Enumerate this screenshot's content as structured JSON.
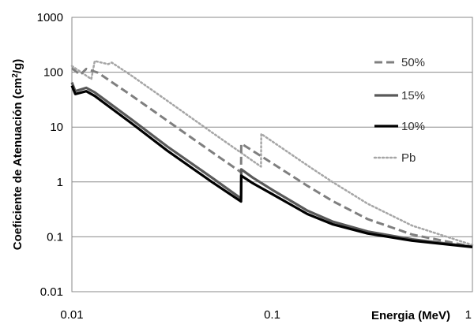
{
  "chart_data": {
    "type": "line",
    "xlabel": "Energia (MeV)",
    "ylabel_main": "Coeficiente de Atenuación (cm",
    "ylabel_sup": "2",
    "ylabel_tail": "/g)",
    "x_scale": "log",
    "y_scale": "log",
    "xlim": [
      0.01,
      1
    ],
    "ylim": [
      0.01,
      1000
    ],
    "x_ticks": [
      0.01,
      0.1,
      1
    ],
    "x_tick_labels": [
      "0.01",
      "0.1",
      "1"
    ],
    "y_ticks": [
      0.01,
      0.1,
      1,
      10,
      100,
      1000
    ],
    "y_tick_labels": [
      "0.01",
      "0.1",
      "1",
      "10",
      "100",
      "1000"
    ],
    "grid": "horizontal",
    "legend_position": "right",
    "series": [
      {
        "name": "50%",
        "color": "#7f7f7f",
        "style": "dashed",
        "points": [
          [
            0.01,
            118
          ],
          [
            0.011,
            90
          ],
          [
            0.0118,
            115
          ],
          [
            0.0135,
            98
          ],
          [
            0.02,
            37
          ],
          [
            0.03,
            13
          ],
          [
            0.05,
            3.5
          ],
          [
            0.0699,
            1.5
          ],
          [
            0.0701,
            5.0
          ],
          [
            0.08,
            3.7
          ],
          [
            0.1,
            2.2
          ],
          [
            0.15,
            0.85
          ],
          [
            0.2,
            0.45
          ],
          [
            0.3,
            0.21
          ],
          [
            0.5,
            0.11
          ],
          [
            1,
            0.066
          ]
        ]
      },
      {
        "name": "15%",
        "color": "#595959",
        "style": "solid",
        "points": [
          [
            0.01,
            65
          ],
          [
            0.0104,
            45
          ],
          [
            0.0118,
            52
          ],
          [
            0.013,
            43
          ],
          [
            0.02,
            13.5
          ],
          [
            0.03,
            4.4
          ],
          [
            0.05,
            1.2
          ],
          [
            0.0699,
            0.5
          ],
          [
            0.0701,
            1.7
          ],
          [
            0.08,
            1.2
          ],
          [
            0.1,
            0.72
          ],
          [
            0.15,
            0.3
          ],
          [
            0.2,
            0.19
          ],
          [
            0.3,
            0.125
          ],
          [
            0.5,
            0.09
          ],
          [
            1,
            0.066
          ]
        ]
      },
      {
        "name": "10%",
        "color": "#000000",
        "style": "solid",
        "points": [
          [
            0.01,
            57
          ],
          [
            0.0104,
            40
          ],
          [
            0.0118,
            45
          ],
          [
            0.013,
            37
          ],
          [
            0.02,
            11.5
          ],
          [
            0.03,
            3.7
          ],
          [
            0.05,
            1.0
          ],
          [
            0.0699,
            0.44
          ],
          [
            0.0701,
            1.3
          ],
          [
            0.08,
            0.95
          ],
          [
            0.1,
            0.6
          ],
          [
            0.15,
            0.26
          ],
          [
            0.2,
            0.17
          ],
          [
            0.3,
            0.115
          ],
          [
            0.5,
            0.085
          ],
          [
            1,
            0.065
          ]
        ]
      },
      {
        "name": "Pb",
        "color": "#a6a6a6",
        "style": "dotted",
        "points": [
          [
            0.01,
            130
          ],
          [
            0.0125,
            75
          ],
          [
            0.013,
            160
          ],
          [
            0.0152,
            140
          ],
          [
            0.0158,
            150
          ],
          [
            0.02,
            85
          ],
          [
            0.03,
            30
          ],
          [
            0.05,
            8
          ],
          [
            0.088,
            1.9
          ],
          [
            0.0882,
            7.5
          ],
          [
            0.1,
            5.5
          ],
          [
            0.15,
            2.0
          ],
          [
            0.2,
            1.0
          ],
          [
            0.3,
            0.4
          ],
          [
            0.5,
            0.16
          ],
          [
            1,
            0.071
          ]
        ]
      }
    ]
  }
}
